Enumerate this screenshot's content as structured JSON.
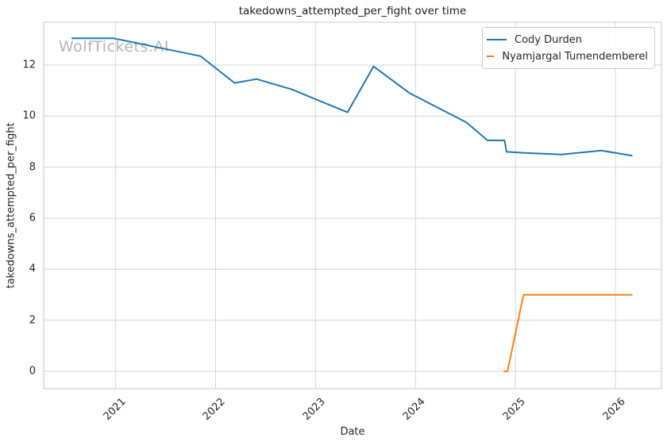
{
  "watermark": {
    "text": "WolfTickets.AI"
  },
  "chart_data": {
    "type": "line",
    "title": "takedowns_attempted_per_fight over time",
    "xlabel": "Date",
    "ylabel": "takedowns_attempted_per_fight",
    "x_unit": "decimal_year",
    "xlim": [
      2020.28,
      2026.46
    ],
    "ylim": [
      -0.68,
      13.68
    ],
    "xticks": [
      2021,
      2022,
      2023,
      2024,
      2025,
      2026
    ],
    "yticks": [
      0,
      2,
      4,
      6,
      8,
      10,
      12
    ],
    "grid": true,
    "legend_position": "upper right",
    "colors": {
      "grid": "#d6d6d6",
      "spine": "#c8c8c8",
      "text": "#262626"
    },
    "series": [
      {
        "name": "Cody Durden",
        "color": "#1f77b4",
        "x": [
          2020.56,
          2020.98,
          2021.85,
          2022.19,
          2022.41,
          2022.76,
          2023.32,
          2023.58,
          2023.94,
          2024.51,
          2024.72,
          2024.89,
          2024.91,
          2025.13,
          2025.46,
          2025.86,
          2026.17
        ],
        "values": [
          13.05,
          13.05,
          12.35,
          11.3,
          11.45,
          11.05,
          10.15,
          11.95,
          10.9,
          9.75,
          9.05,
          9.05,
          8.6,
          8.55,
          8.5,
          8.65,
          8.45
        ]
      },
      {
        "name": "Nyamjargal Tumendemberel",
        "color": "#ff7f0e",
        "x": [
          2024.88,
          2024.92,
          2025.08,
          2026.17
        ],
        "values": [
          0.0,
          0.0,
          3.0,
          3.0
        ]
      }
    ]
  }
}
